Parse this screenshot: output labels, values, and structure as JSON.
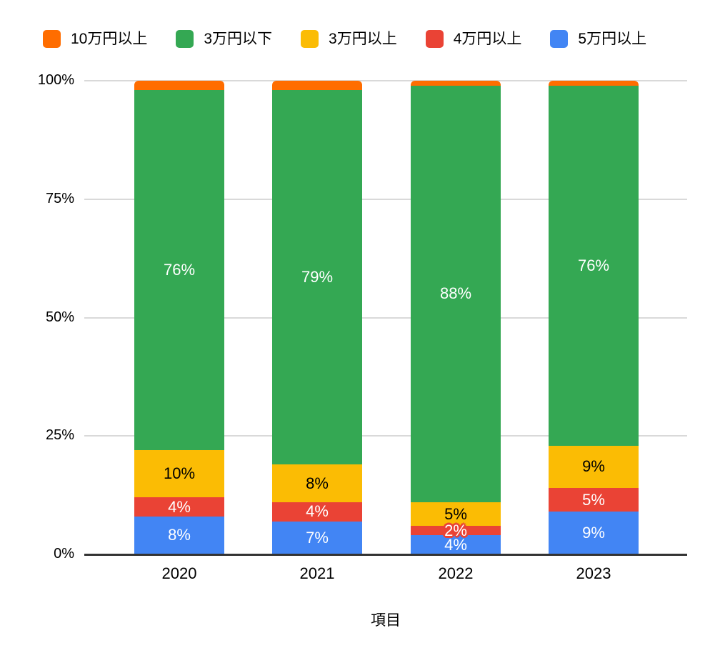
{
  "chart_data": {
    "type": "bar",
    "variant": "stacked-100-percent-column",
    "title": "",
    "xlabel": "項目",
    "ylabel": "",
    "categories": [
      "2020",
      "2021",
      "2022",
      "2023"
    ],
    "series": [
      {
        "name": "5万円以上",
        "color": "#4285F4",
        "label_color": "#ffffff",
        "show_labels": true,
        "values": [
          8,
          7,
          4,
          9
        ]
      },
      {
        "name": "4万円以上",
        "color": "#EA4335",
        "label_color": "#ffffff",
        "show_labels": true,
        "values": [
          4,
          4,
          2,
          5
        ]
      },
      {
        "name": "3万円以上",
        "color": "#FBBC04",
        "label_color": "#000000",
        "show_labels": true,
        "values": [
          10,
          8,
          5,
          9
        ]
      },
      {
        "name": "3万円以下",
        "color": "#34A853",
        "label_color": "#ffffff",
        "show_labels": true,
        "values": [
          76,
          79,
          88,
          76
        ]
      },
      {
        "name": "10万円以上",
        "color": "#FF6D00",
        "label_color": "#ffffff",
        "show_labels": false,
        "values": [
          2,
          2,
          1,
          1
        ]
      }
    ],
    "label_suffix": "%",
    "y_ticks": [
      {
        "value": 0,
        "label": "0%"
      },
      {
        "value": 25,
        "label": "25%"
      },
      {
        "value": 50,
        "label": "50%"
      },
      {
        "value": 75,
        "label": "75%"
      },
      {
        "value": 100,
        "label": "100%"
      }
    ],
    "ylim": [
      0,
      100
    ],
    "grid": true,
    "legend_position": "top"
  },
  "legend": {
    "items": [
      {
        "label": "10万円以上",
        "color": "#FF6D00"
      },
      {
        "label": "3万円以下",
        "color": "#34A853"
      },
      {
        "label": "3万円以上",
        "color": "#FBBC04"
      },
      {
        "label": "4万円以上",
        "color": "#EA4335"
      },
      {
        "label": "5万円以上",
        "color": "#4285F4"
      }
    ]
  },
  "colors": {
    "background": "#ffffff",
    "gridline": "#d9d9d9",
    "axis_line": "#333333",
    "text": "#000000"
  }
}
